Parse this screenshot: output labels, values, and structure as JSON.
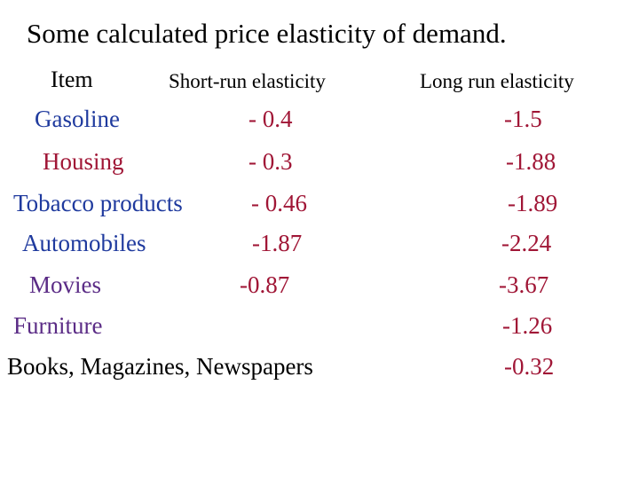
{
  "title": "Some calculated price elasticity of demand.",
  "columns": {
    "item": "Item",
    "short_run": "Short-run elasticity",
    "long_run": "Long run elasticity"
  },
  "colors": {
    "gasoline": "#1f3a9e",
    "housing": "#a01636",
    "tobacco": "#1f3a9e",
    "automobiles": "#1f3a9e",
    "movies": "#5b2c86",
    "furniture": "#5b2c86",
    "books": "#000000",
    "short_values": "#a01636",
    "long_values": "#a01636"
  },
  "rows": [
    {
      "item": "Gasoline",
      "short": "- 0.4",
      "long": "-1.5"
    },
    {
      "item": "Housing",
      "short": "- 0.3",
      "long": "-1.88"
    },
    {
      "item": "Tobacco products",
      "short": "- 0.46",
      "long": "-1.89"
    },
    {
      "item": "Automobiles",
      "short": "-1.87",
      "long": "-2.24"
    },
    {
      "item": "Movies",
      "short": "-0.87",
      "long": "-3.67"
    },
    {
      "item": "Furniture",
      "short": "",
      "long": "-1.26"
    },
    {
      "item": "Books, Magazines, Newspapers",
      "short": "",
      "long": "-0.32"
    }
  ]
}
